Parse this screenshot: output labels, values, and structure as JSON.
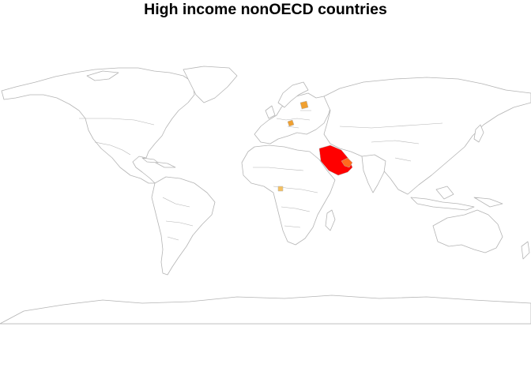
{
  "map": {
    "title": "High income nonOECD countries"
  },
  "colors": {
    "background": "#ffffff",
    "land_fill": "#ffffff",
    "border_stroke": "#b4b4b4",
    "highlight_strong": "#ff0000",
    "highlight_orange": "#ff6a1e",
    "highlight_amber": "#f0a030",
    "highlight_light": "#f5c060"
  },
  "highlighted_regions": [
    {
      "id": "arabian-peninsula",
      "color": "#ff0000"
    },
    {
      "id": "gulf-states",
      "color": "#ff6a1e"
    },
    {
      "id": "baltic-states",
      "color": "#f0a030"
    },
    {
      "id": "central-europe",
      "color": "#f0a030"
    },
    {
      "id": "equatorial-west-africa",
      "color": "#f5c060"
    }
  ]
}
